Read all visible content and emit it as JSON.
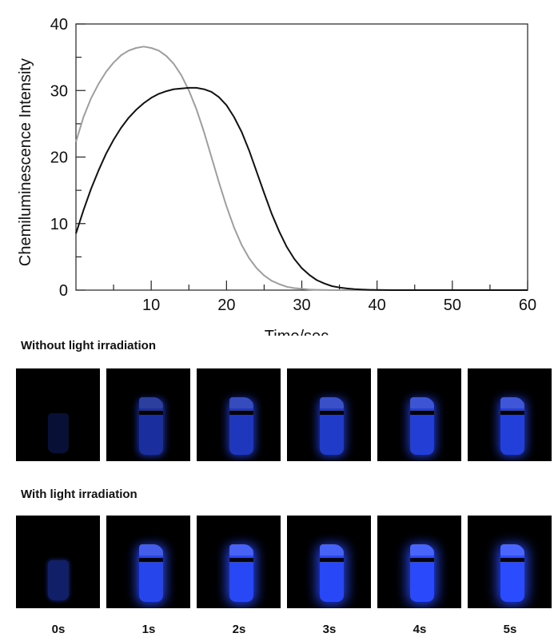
{
  "chart_data": {
    "type": "line",
    "xlabel": "Time/sec",
    "ylabel": "Chemiluminescence Intensity",
    "xlim": [
      0,
      60
    ],
    "ylim": [
      0,
      40
    ],
    "xticks": [
      "10",
      "20",
      "30",
      "40",
      "50",
      "60"
    ],
    "yticks": [
      "0",
      "10",
      "20",
      "30",
      "40"
    ],
    "legend": "none",
    "grid": false,
    "series": [
      {
        "color": "#9e9e9e",
        "x": [
          0,
          1,
          2,
          3,
          4,
          5,
          6,
          7,
          8,
          9,
          10,
          11,
          12,
          13,
          14,
          15,
          16,
          17,
          18,
          19,
          20,
          21,
          22,
          23,
          24,
          25,
          26,
          27,
          28,
          29,
          30,
          31,
          32,
          33,
          34,
          35,
          36,
          38,
          40,
          45,
          50,
          55,
          60
        ],
        "values": [
          22.3,
          26.0,
          28.8,
          31.0,
          32.8,
          34.2,
          35.3,
          36.0,
          36.4,
          36.6,
          36.4,
          36.0,
          35.2,
          34.0,
          32.3,
          30.0,
          27.2,
          23.8,
          20.0,
          16.2,
          12.6,
          9.4,
          6.8,
          4.8,
          3.3,
          2.2,
          1.4,
          0.9,
          0.5,
          0.3,
          0.2,
          0.1,
          0.05,
          0.02,
          0,
          0,
          0,
          0,
          0,
          0,
          0,
          0,
          0
        ]
      },
      {
        "color": "#111111",
        "x": [
          0,
          1,
          2,
          3,
          4,
          5,
          6,
          7,
          8,
          9,
          10,
          11,
          12,
          13,
          14,
          15,
          16,
          17,
          18,
          19,
          20,
          21,
          22,
          23,
          24,
          25,
          26,
          27,
          28,
          29,
          30,
          31,
          32,
          33,
          34,
          35,
          36,
          37,
          38,
          39,
          40,
          42,
          45,
          50,
          55,
          60
        ],
        "values": [
          8.5,
          12.0,
          15.2,
          18.0,
          20.5,
          22.6,
          24.4,
          25.9,
          27.1,
          28.1,
          28.9,
          29.5,
          29.9,
          30.2,
          30.3,
          30.4,
          30.4,
          30.2,
          29.8,
          29.0,
          27.8,
          26.0,
          23.8,
          21.0,
          17.8,
          14.6,
          11.5,
          8.8,
          6.5,
          4.7,
          3.3,
          2.3,
          1.5,
          1.0,
          0.6,
          0.4,
          0.25,
          0.15,
          0.1,
          0.05,
          0.02,
          0,
          0,
          0,
          0,
          0
        ]
      }
    ]
  },
  "figure": {
    "rows": [
      {
        "label": "Without light irradiation",
        "brightness": [
          0.08,
          0.55,
          0.7,
          0.75,
          0.8,
          0.82
        ]
      },
      {
        "label": "With light irradiation",
        "brightness": [
          0.3,
          0.9,
          0.95,
          0.97,
          0.98,
          1.0
        ]
      }
    ],
    "time_labels": [
      "0s",
      "1s",
      "2s",
      "3s",
      "4s",
      "5s"
    ],
    "glow_color": "#2a4bff"
  }
}
